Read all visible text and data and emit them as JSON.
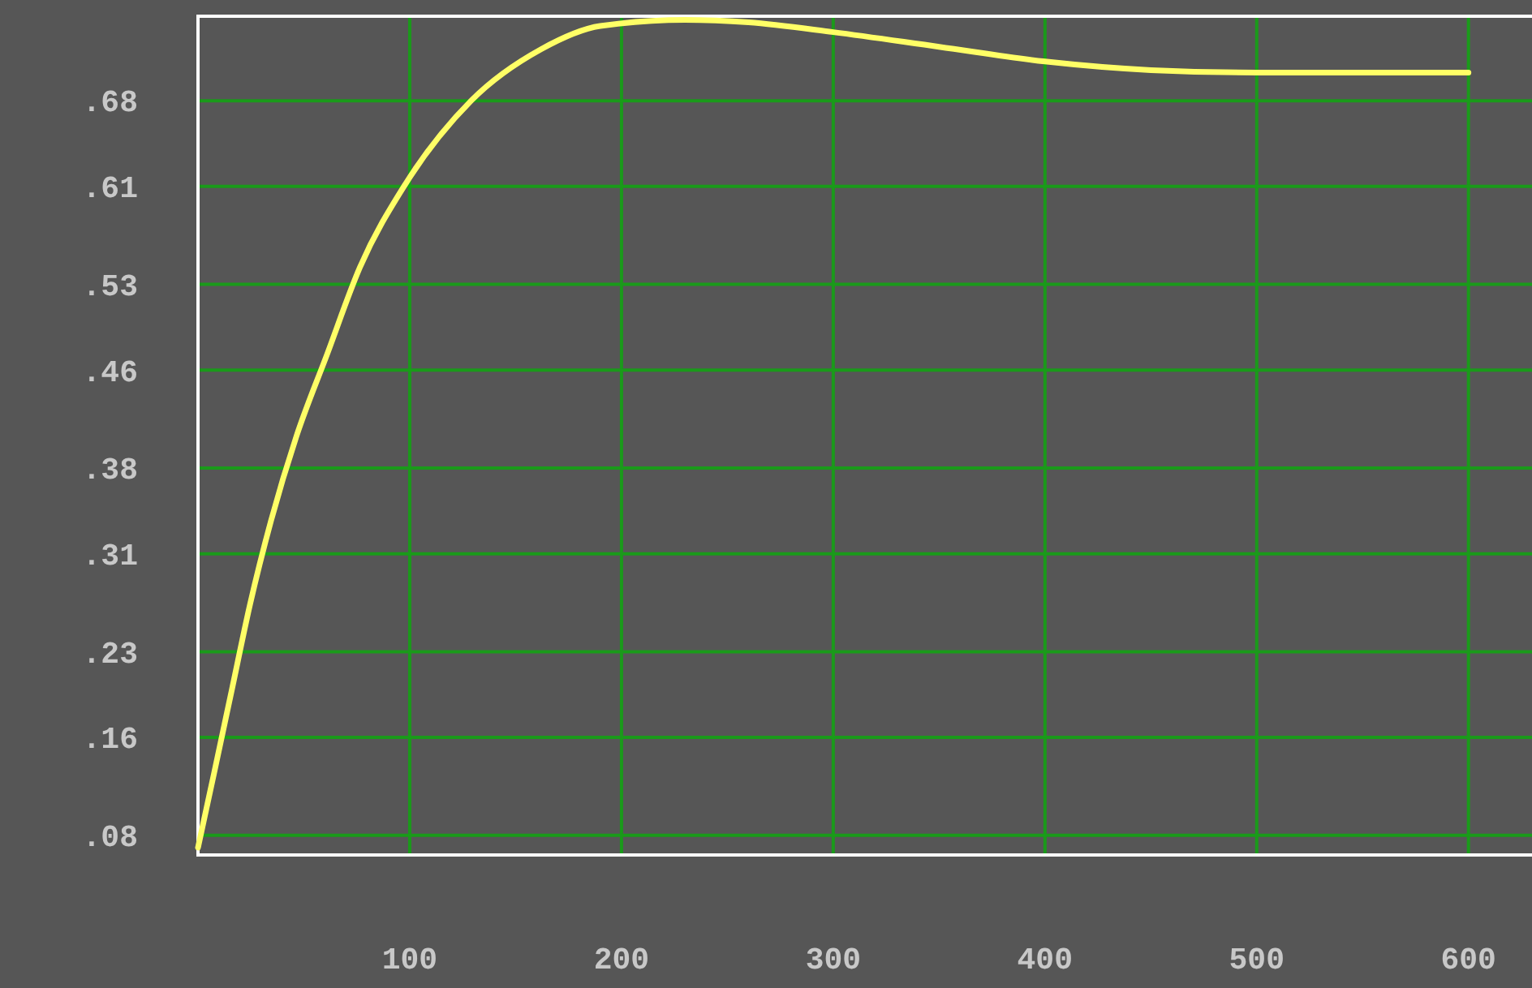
{
  "chart_data": {
    "type": "line",
    "x": [
      0,
      7.5,
      16,
      24.5,
      34.5,
      46.5,
      61,
      76.5,
      98,
      129,
      162,
      190,
      230,
      260,
      300,
      350,
      400,
      450,
      500,
      550,
      600
    ],
    "series": [
      {
        "color": "#ffff66",
        "values": [
          0.07,
          0.13,
          0.199,
          0.268,
          0.337,
          0.406,
          0.473,
          0.544,
          0.612,
          0.68,
          0.722,
          0.741,
          0.746,
          0.744,
          0.736,
          0.724,
          0.712,
          0.705,
          0.703,
          0.703,
          0.703
        ]
      }
    ],
    "xlim": [
      0,
      630
    ],
    "xticks": [
      100,
      200,
      300,
      400,
      500,
      600
    ],
    "ylim": [
      0.064,
      0.749
    ],
    "yticks": [
      {
        "value": 0.08,
        "label": ".08"
      },
      {
        "value": 0.16,
        "label": ".16"
      },
      {
        "value": 0.23,
        "label": ".23"
      },
      {
        "value": 0.31,
        "label": ".31"
      },
      {
        "value": 0.38,
        "label": ".38"
      },
      {
        "value": 0.46,
        "label": ".46"
      },
      {
        "value": 0.53,
        "label": ".53"
      },
      {
        "value": 0.61,
        "label": ".61"
      },
      {
        "value": 0.68,
        "label": ".68"
      }
    ],
    "grid": true
  }
}
